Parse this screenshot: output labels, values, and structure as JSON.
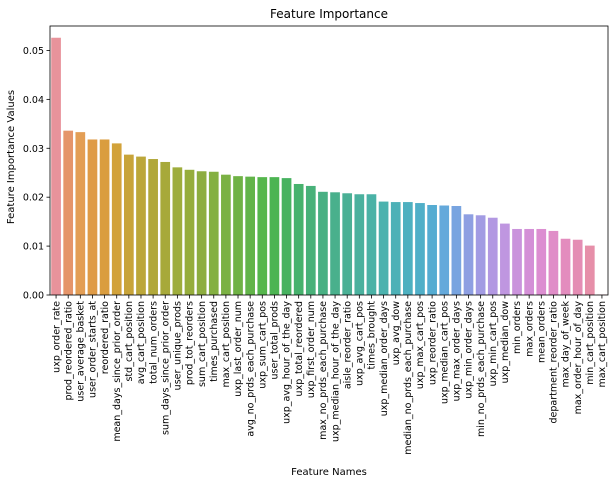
{
  "chart_data": {
    "type": "bar",
    "title": "Feature Importance",
    "xlabel": "Feature Names",
    "ylabel": "Feature Importance Values",
    "ylim": [
      0,
      0.055
    ],
    "yticks": [
      "0.00",
      "0.01",
      "0.02",
      "0.03",
      "0.04",
      "0.05"
    ],
    "ytick_values": [
      0,
      0.01,
      0.02,
      0.03,
      0.04,
      0.05
    ],
    "grid": false,
    "categories": [
      "uxp_order_rate",
      "prod_reordered_ratio",
      "user_average_basket",
      "user_order_starts_at",
      "reordered_ratio",
      "mean_days_since_prior_order",
      "std_cart_position",
      "avg_cart_position",
      "total_num_orders",
      "sum_days_since_prior_order",
      "user_unique_prods",
      "prod_tot_reorders",
      "sum_cart_position",
      "times_purchased",
      "max_cart_position",
      "uxp_last_order_num",
      "avg_no_prds_each_purchase",
      "uxp_sum_cart_pos",
      "user_total_prods",
      "uxp_avg_hour_of_the_day",
      "uxp_total_reordered",
      "uxp_first_order_num",
      "max_no_prds_each_purchase",
      "uxp_median_hour_of_the_day",
      "aisle_reorder_ratio",
      "uxp_avg_cart_pos",
      "times_brought",
      "uxp_median_order_days",
      "uxp_avg_dow",
      "median_no_prds_each_purchase",
      "uxp_max_cart_pos",
      "uxp_reorder_ratio",
      "uxp_median_cart_pos",
      "uxp_max_order_days",
      "uxp_min_order_days",
      "min_no_prds_each_purchase",
      "uxp_min_cart_pos",
      "uxp_median_dow",
      "min_orders",
      "max_orders",
      "mean_orders",
      "department_reorder_ratio",
      "max_day_of_week",
      "max_order_hour_of_day",
      "min_cart_position",
      "max_cart_position"
    ],
    "values": [
      0.0526,
      0.0336,
      0.0333,
      0.0318,
      0.0318,
      0.031,
      0.0287,
      0.0283,
      0.0278,
      0.0272,
      0.0261,
      0.0256,
      0.0253,
      0.0252,
      0.0246,
      0.0243,
      0.0242,
      0.0241,
      0.0241,
      0.0239,
      0.0227,
      0.0223,
      0.0211,
      0.021,
      0.0208,
      0.0206,
      0.0206,
      0.0191,
      0.019,
      0.019,
      0.0188,
      0.0184,
      0.0183,
      0.0182,
      0.0165,
      0.0163,
      0.0158,
      0.0146,
      0.0135,
      0.0135,
      0.0135,
      0.0131,
      0.0115,
      0.0113,
      0.0101,
      0.0001
    ],
    "colors": [
      "#e8939b",
      "#e5956a",
      "#e39e55",
      "#df9b47",
      "#da9d3f",
      "#d2a23a",
      "#c8a43a",
      "#bca73a",
      "#b1a83a",
      "#a7a93a",
      "#9ead3c",
      "#96ad3c",
      "#8dad3f",
      "#84b041",
      "#7bb144",
      "#6fb245",
      "#62b449",
      "#55b64c",
      "#4cb452",
      "#47b260",
      "#47b26d",
      "#48b179",
      "#48b083",
      "#49b08c",
      "#4ab095",
      "#4ab19e",
      "#4ab2a6",
      "#4bb2ae",
      "#4db1b7",
      "#4eb0c0",
      "#50afc8",
      "#55acd2",
      "#64a9db",
      "#78a4e0",
      "#8e9fe2",
      "#a29be3",
      "#b298e2",
      "#bf96e0",
      "#ca93dc",
      "#d490d7",
      "#dc8ed1",
      "#e08dc8",
      "#e38cbe",
      "#e48db4",
      "#e68fa9",
      "#e8919f"
    ]
  }
}
